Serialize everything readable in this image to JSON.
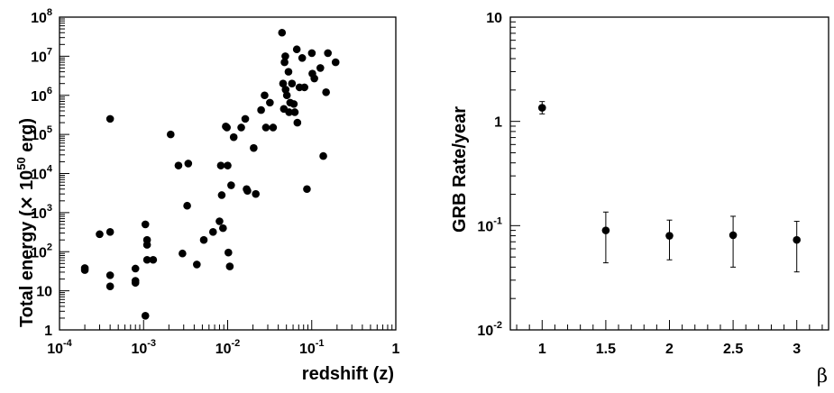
{
  "chart_data": [
    {
      "type": "scatter",
      "xlabel": "redshift (z)",
      "ylabel": {
        "prefix": "Total energy (",
        "times": "×",
        "base": " 10",
        "exp": "50",
        "suffix": " erg)"
      },
      "xscale": "log",
      "yscale": "log",
      "xlim": [
        0.0001,
        1
      ],
      "ylim": [
        1,
        100000000
      ],
      "grid": false,
      "x_ticks": [
        {
          "base": "10",
          "exp": "-4"
        },
        {
          "base": "10",
          "exp": "-3"
        },
        {
          "base": "10",
          "exp": "-2"
        },
        {
          "base": "10",
          "exp": "-1"
        },
        {
          "base": "1",
          "exp": ""
        }
      ],
      "y_ticks": [
        {
          "base": "1",
          "exp": ""
        },
        {
          "base": "10",
          "exp": ""
        },
        {
          "base": "10",
          "exp": "2"
        },
        {
          "base": "10",
          "exp": "3"
        },
        {
          "base": "10",
          "exp": "4"
        },
        {
          "base": "10",
          "exp": "5"
        },
        {
          "base": "10",
          "exp": "6"
        },
        {
          "base": "10",
          "exp": "7"
        },
        {
          "base": "10",
          "exp": "8"
        }
      ],
      "points": [
        [
          0.0002,
          38
        ],
        [
          0.0002,
          34
        ],
        [
          0.0003,
          280
        ],
        [
          0.0004,
          320
        ],
        [
          0.0004,
          25
        ],
        [
          0.0004,
          13
        ],
        [
          0.0004,
          250000
        ],
        [
          0.0008,
          37
        ],
        [
          0.0008,
          18
        ],
        [
          0.0008,
          16
        ],
        [
          0.00105,
          2.3
        ],
        [
          0.00105,
          500
        ],
        [
          0.0011,
          200
        ],
        [
          0.0011,
          150
        ],
        [
          0.0011,
          62
        ],
        [
          0.0013,
          62
        ],
        [
          0.0021,
          100000
        ],
        [
          0.0026,
          16000
        ],
        [
          0.0029,
          90
        ],
        [
          0.0033,
          1500
        ],
        [
          0.0034,
          18000
        ],
        [
          0.0043,
          47
        ],
        [
          0.0052,
          200
        ],
        [
          0.0067,
          320
        ],
        [
          0.008,
          600
        ],
        [
          0.0083,
          16000
        ],
        [
          0.0085,
          2800
        ],
        [
          0.0088,
          400
        ],
        [
          0.0095,
          160000
        ],
        [
          0.0098,
          150000
        ],
        [
          0.01,
          16000
        ],
        [
          0.0102,
          95
        ],
        [
          0.0106,
          42
        ],
        [
          0.011,
          5000
        ],
        [
          0.0118,
          85000
        ],
        [
          0.0145,
          150000
        ],
        [
          0.0162,
          250000
        ],
        [
          0.0168,
          4000
        ],
        [
          0.0172,
          3600
        ],
        [
          0.0204,
          45000
        ],
        [
          0.0216,
          3000
        ],
        [
          0.025,
          420000
        ],
        [
          0.0275,
          1000000
        ],
        [
          0.0285,
          150000
        ],
        [
          0.0318,
          650000
        ],
        [
          0.0347,
          150000
        ],
        [
          0.0443,
          40000000
        ],
        [
          0.0456,
          2000000
        ],
        [
          0.0466,
          450000
        ],
        [
          0.0475,
          7000000
        ],
        [
          0.0485,
          10000000
        ],
        [
          0.0489,
          1400000
        ],
        [
          0.0506,
          1000000
        ],
        [
          0.0529,
          4000000
        ],
        [
          0.0538,
          370000
        ],
        [
          0.0554,
          650000
        ],
        [
          0.0582,
          2000000
        ],
        [
          0.0612,
          600000
        ],
        [
          0.0629,
          370000
        ],
        [
          0.0664,
          15000000
        ],
        [
          0.0675,
          200000
        ],
        [
          0.0715,
          1600000
        ],
        [
          0.077,
          9000000
        ],
        [
          0.0819,
          1600000
        ],
        [
          0.0877,
          4000
        ],
        [
          0.1003,
          12000000
        ],
        [
          0.1017,
          3600000
        ],
        [
          0.1074,
          2700000
        ],
        [
          0.1266,
          5000000
        ],
        [
          0.1372,
          28000
        ],
        [
          0.1481,
          1200000
        ],
        [
          0.1557,
          12000000
        ],
        [
          0.1923,
          7000000
        ]
      ]
    },
    {
      "type": "scatter",
      "xlabel": "β",
      "ylabel": "GRB Rate/year",
      "xscale": "linear",
      "yscale": "log",
      "xlim": [
        0.75,
        3.25
      ],
      "ylim": [
        0.01,
        10
      ],
      "grid": false,
      "x_ticks": [
        "1",
        "1.5",
        "2",
        "2.5",
        "3"
      ],
      "y_ticks": [
        {
          "base": "10",
          "exp": "-2"
        },
        {
          "base": "10",
          "exp": "-1"
        },
        {
          "base": "1",
          "exp": ""
        },
        {
          "base": "10",
          "exp": ""
        }
      ],
      "points": [
        {
          "x": 1.0,
          "y": 1.35,
          "ylow": 1.18,
          "yhigh": 1.55
        },
        {
          "x": 1.5,
          "y": 0.09,
          "ylow": 0.044,
          "yhigh": 0.135
        },
        {
          "x": 2.0,
          "y": 0.08,
          "ylow": 0.047,
          "yhigh": 0.113
        },
        {
          "x": 2.5,
          "y": 0.081,
          "ylow": 0.04,
          "yhigh": 0.123
        },
        {
          "x": 3.0,
          "y": 0.073,
          "ylow": 0.036,
          "yhigh": 0.11
        }
      ]
    }
  ]
}
